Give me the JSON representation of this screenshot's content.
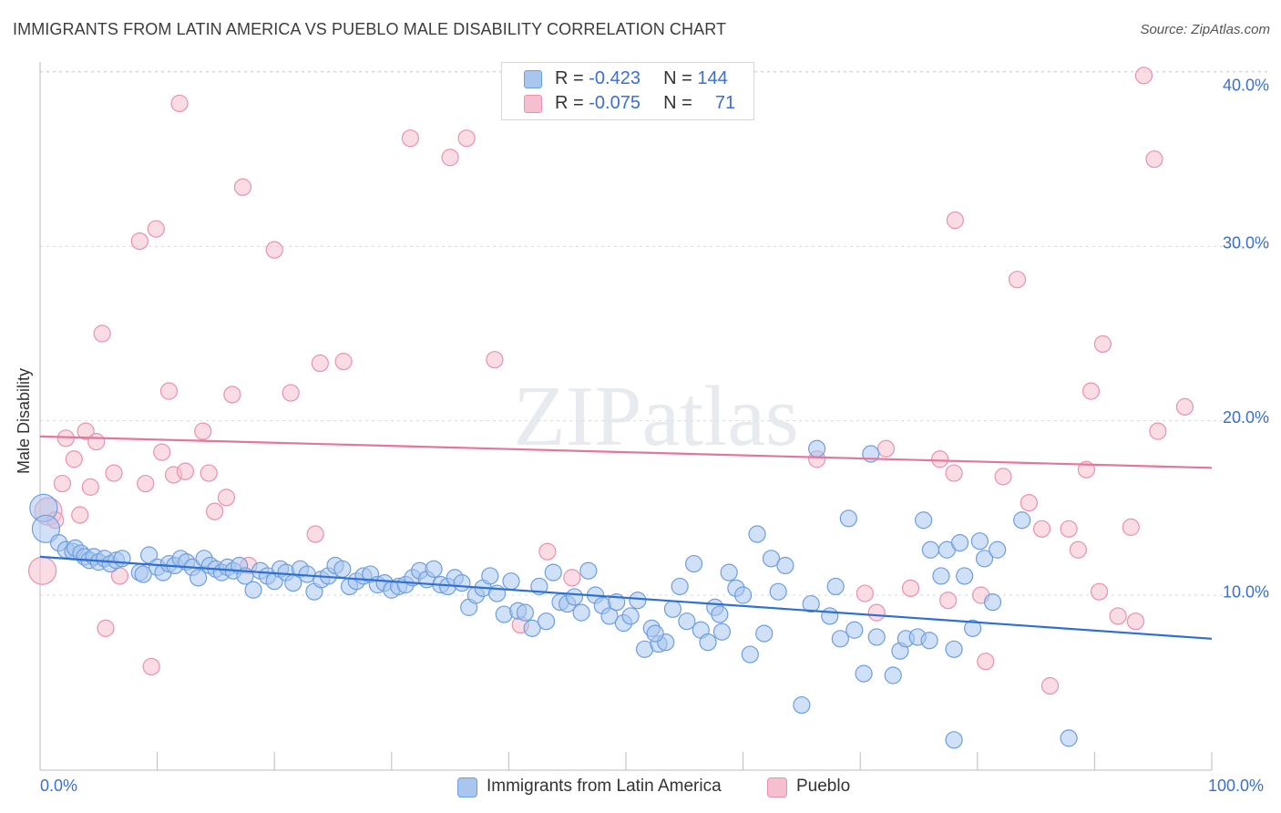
{
  "title": "IMMIGRANTS FROM LATIN AMERICA VS PUEBLO MALE DISABILITY CORRELATION CHART",
  "source": "Source: ZipAtlas.com",
  "watermark": "ZIPatlas",
  "legend": {
    "rows": [
      {
        "r_label": "R =",
        "r_value": "-0.423",
        "n_label": "N =",
        "n_value": "144"
      },
      {
        "r_label": "R =",
        "r_value": "-0.075",
        "n_label": "N =",
        "n_value": "71"
      }
    ]
  },
  "bottom_legend": {
    "series1": "Immigrants from Latin America",
    "series2": "Pueblo"
  },
  "colors": {
    "blue_fill": "#a9c6ef",
    "blue_stroke": "#6d9ee0",
    "blue_line": "#2f6fd1",
    "pink_fill": "#f6bfd0",
    "pink_stroke": "#e991ad",
    "pink_line": "#e5769b",
    "axis_label": "#3b6fd1",
    "grid": "#d9d9d9"
  },
  "chart_data": {
    "type": "scatter",
    "title": "IMMIGRANTS FROM LATIN AMERICA VS PUEBLO MALE DISABILITY CORRELATION CHART",
    "xlabel": "",
    "ylabel": "Male Disability",
    "x_tick_labels": [
      "0.0%",
      "100.0%"
    ],
    "y_tick_labels": [
      "10.0%",
      "20.0%",
      "30.0%",
      "40.0%"
    ],
    "y_ticks": [
      10,
      20,
      30,
      40
    ],
    "xlim": [
      0,
      100
    ],
    "ylim": [
      0,
      41
    ],
    "grid": true,
    "series": [
      {
        "name": "Immigrants from Latin America",
        "trend": {
          "x": [
            0,
            100
          ],
          "y": [
            12.2,
            7.5
          ]
        },
        "points": [
          [
            0.3,
            15.0
          ],
          [
            0.5,
            13.8
          ],
          [
            1.6,
            13.0
          ],
          [
            2.2,
            12.6
          ],
          [
            2.8,
            12.5
          ],
          [
            3.0,
            12.7
          ],
          [
            3.5,
            12.4
          ],
          [
            3.8,
            12.2
          ],
          [
            4.2,
            12.0
          ],
          [
            4.6,
            12.2
          ],
          [
            5.0,
            11.9
          ],
          [
            5.5,
            12.1
          ],
          [
            6.0,
            11.8
          ],
          [
            6.5,
            12.0
          ],
          [
            7.0,
            12.1
          ],
          [
            8.5,
            11.3
          ],
          [
            8.8,
            11.2
          ],
          [
            9.3,
            12.3
          ],
          [
            10.0,
            11.6
          ],
          [
            10.5,
            11.3
          ],
          [
            11.0,
            11.8
          ],
          [
            11.5,
            11.7
          ],
          [
            12.0,
            12.1
          ],
          [
            12.5,
            11.9
          ],
          [
            13.0,
            11.6
          ],
          [
            13.5,
            11.0
          ],
          [
            14.0,
            12.1
          ],
          [
            14.5,
            11.7
          ],
          [
            15.0,
            11.5
          ],
          [
            15.5,
            11.3
          ],
          [
            16.0,
            11.6
          ],
          [
            16.5,
            11.4
          ],
          [
            17.0,
            11.7
          ],
          [
            17.5,
            11.1
          ],
          [
            18.2,
            10.3
          ],
          [
            18.8,
            11.4
          ],
          [
            19.4,
            11.1
          ],
          [
            20.0,
            10.8
          ],
          [
            20.5,
            11.5
          ],
          [
            21.0,
            11.3
          ],
          [
            21.6,
            10.7
          ],
          [
            22.2,
            11.5
          ],
          [
            22.8,
            11.2
          ],
          [
            23.4,
            10.2
          ],
          [
            24.0,
            10.9
          ],
          [
            24.6,
            11.1
          ],
          [
            25.2,
            11.7
          ],
          [
            25.8,
            11.5
          ],
          [
            26.4,
            10.5
          ],
          [
            27.0,
            10.8
          ],
          [
            27.6,
            11.1
          ],
          [
            28.2,
            11.2
          ],
          [
            28.8,
            10.6
          ],
          [
            29.4,
            10.7
          ],
          [
            30.0,
            10.3
          ],
          [
            30.6,
            10.5
          ],
          [
            31.2,
            10.6
          ],
          [
            31.8,
            11.0
          ],
          [
            32.4,
            11.4
          ],
          [
            33.0,
            10.9
          ],
          [
            33.6,
            11.5
          ],
          [
            34.2,
            10.6
          ],
          [
            34.8,
            10.5
          ],
          [
            35.4,
            11.0
          ],
          [
            36.0,
            10.7
          ],
          [
            36.6,
            9.3
          ],
          [
            37.2,
            10.0
          ],
          [
            37.8,
            10.4
          ],
          [
            38.4,
            11.1
          ],
          [
            39.0,
            10.1
          ],
          [
            39.6,
            8.9
          ],
          [
            40.2,
            10.8
          ],
          [
            40.8,
            9.1
          ],
          [
            41.4,
            9.0
          ],
          [
            42.0,
            8.1
          ],
          [
            42.6,
            10.5
          ],
          [
            43.2,
            8.5
          ],
          [
            43.8,
            11.3
          ],
          [
            44.4,
            9.6
          ],
          [
            45.0,
            9.5
          ],
          [
            45.6,
            9.9
          ],
          [
            46.2,
            9.0
          ],
          [
            46.8,
            11.4
          ],
          [
            47.4,
            10.0
          ],
          [
            48.0,
            9.4
          ],
          [
            48.6,
            8.8
          ],
          [
            49.2,
            9.6
          ],
          [
            49.8,
            8.4
          ],
          [
            50.4,
            8.8
          ],
          [
            51.0,
            9.7
          ],
          [
            51.6,
            6.9
          ],
          [
            52.2,
            8.1
          ],
          [
            52.8,
            7.2
          ],
          [
            53.4,
            7.3
          ],
          [
            54.0,
            9.2
          ],
          [
            54.6,
            10.5
          ],
          [
            55.2,
            8.5
          ],
          [
            55.8,
            11.8
          ],
          [
            56.4,
            8.0
          ],
          [
            57.0,
            7.3
          ],
          [
            57.6,
            9.3
          ],
          [
            58.2,
            7.9
          ],
          [
            58.8,
            11.3
          ],
          [
            59.4,
            10.4
          ],
          [
            60.0,
            10.0
          ],
          [
            60.6,
            6.6
          ],
          [
            61.2,
            13.5
          ],
          [
            61.8,
            7.8
          ],
          [
            62.4,
            12.1
          ],
          [
            63.0,
            10.2
          ],
          [
            63.6,
            11.7
          ],
          [
            65.0,
            3.7
          ],
          [
            65.8,
            9.5
          ],
          [
            66.3,
            18.4
          ],
          [
            67.4,
            8.8
          ],
          [
            67.9,
            10.5
          ],
          [
            68.3,
            7.5
          ],
          [
            69.0,
            14.4
          ],
          [
            69.5,
            8.0
          ],
          [
            70.3,
            5.5
          ],
          [
            70.9,
            18.1
          ],
          [
            71.4,
            7.6
          ],
          [
            72.8,
            5.4
          ],
          [
            73.4,
            6.8
          ],
          [
            73.9,
            7.5
          ],
          [
            74.9,
            7.6
          ],
          [
            75.4,
            14.3
          ],
          [
            75.9,
            7.4
          ],
          [
            76.9,
            11.1
          ],
          [
            77.4,
            12.6
          ],
          [
            78.0,
            6.9
          ],
          [
            79.6,
            8.1
          ],
          [
            80.2,
            13.1
          ],
          [
            80.6,
            12.1
          ],
          [
            81.3,
            9.6
          ],
          [
            81.7,
            12.6
          ],
          [
            83.8,
            14.3
          ],
          [
            76.0,
            12.6
          ],
          [
            78.9,
            11.1
          ],
          [
            78.5,
            13.0
          ],
          [
            78.0,
            1.7
          ],
          [
            87.8,
            1.8
          ],
          [
            52.5,
            7.8
          ],
          [
            58.0,
            8.9
          ]
        ]
      },
      {
        "name": "Pueblo",
        "trend": {
          "x": [
            0,
            100
          ],
          "y": [
            19.1,
            17.3
          ]
        },
        "points": [
          [
            0.2,
            11.4
          ],
          [
            0.7,
            14.8
          ],
          [
            1.3,
            14.3
          ],
          [
            2.2,
            19.0
          ],
          [
            1.9,
            16.4
          ],
          [
            2.9,
            17.8
          ],
          [
            3.4,
            14.6
          ],
          [
            3.9,
            19.4
          ],
          [
            4.3,
            16.2
          ],
          [
            4.8,
            18.8
          ],
          [
            5.3,
            25.0
          ],
          [
            5.6,
            8.1
          ],
          [
            6.3,
            17.0
          ],
          [
            6.8,
            11.1
          ],
          [
            8.5,
            30.3
          ],
          [
            9.0,
            16.4
          ],
          [
            9.5,
            5.9
          ],
          [
            9.9,
            31.0
          ],
          [
            10.4,
            18.2
          ],
          [
            11.0,
            21.7
          ],
          [
            11.4,
            16.9
          ],
          [
            11.9,
            38.2
          ],
          [
            12.4,
            17.1
          ],
          [
            13.9,
            19.4
          ],
          [
            14.4,
            17.0
          ],
          [
            14.9,
            14.8
          ],
          [
            15.9,
            15.6
          ],
          [
            16.4,
            21.5
          ],
          [
            17.3,
            33.4
          ],
          [
            17.8,
            11.7
          ],
          [
            20.0,
            29.8
          ],
          [
            21.4,
            21.6
          ],
          [
            23.5,
            13.5
          ],
          [
            23.9,
            23.3
          ],
          [
            25.9,
            23.4
          ],
          [
            31.6,
            36.2
          ],
          [
            35.0,
            35.1
          ],
          [
            36.4,
            36.2
          ],
          [
            38.8,
            23.5
          ],
          [
            41.0,
            8.3
          ],
          [
            43.3,
            12.5
          ],
          [
            45.4,
            11.0
          ],
          [
            66.3,
            17.8
          ],
          [
            70.4,
            10.1
          ],
          [
            71.4,
            9.0
          ],
          [
            72.2,
            18.4
          ],
          [
            74.3,
            10.4
          ],
          [
            76.8,
            17.8
          ],
          [
            77.5,
            9.7
          ],
          [
            78.0,
            17.0
          ],
          [
            80.3,
            10.0
          ],
          [
            80.7,
            6.2
          ],
          [
            82.2,
            16.8
          ],
          [
            84.4,
            15.3
          ],
          [
            78.1,
            31.5
          ],
          [
            83.4,
            28.1
          ],
          [
            85.5,
            13.8
          ],
          [
            86.2,
            4.8
          ],
          [
            87.8,
            13.8
          ],
          [
            88.6,
            12.6
          ],
          [
            89.3,
            17.2
          ],
          [
            89.7,
            21.7
          ],
          [
            90.4,
            10.2
          ],
          [
            90.7,
            24.4
          ],
          [
            92.0,
            8.8
          ],
          [
            93.1,
            13.9
          ],
          [
            93.5,
            8.5
          ],
          [
            94.2,
            39.8
          ],
          [
            95.1,
            35.0
          ],
          [
            95.4,
            19.4
          ],
          [
            97.7,
            20.8
          ]
        ]
      }
    ]
  }
}
